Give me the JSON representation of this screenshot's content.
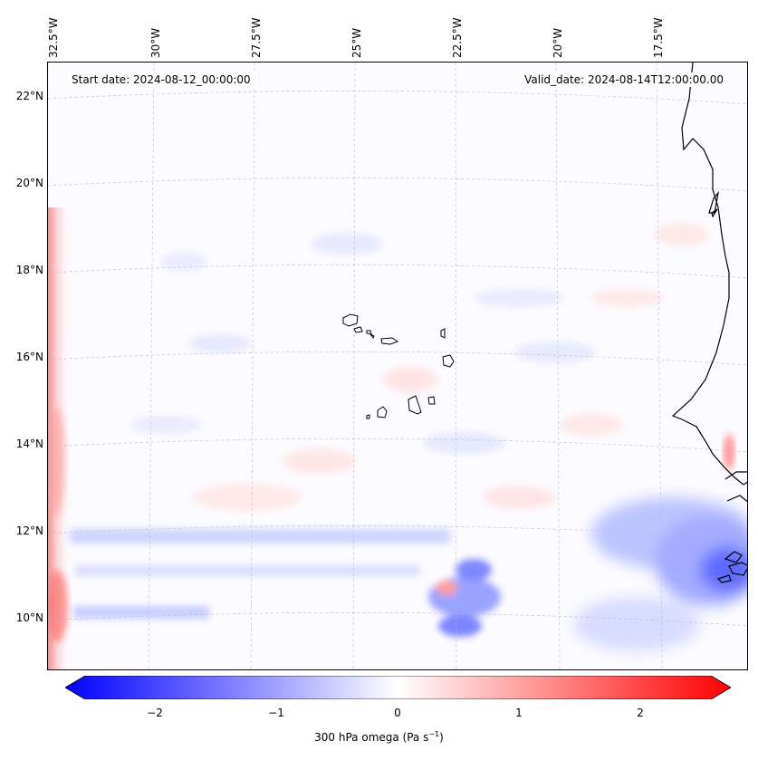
{
  "map": {
    "lon_labels": [
      "32.5°W",
      "30°W",
      "27.5°W",
      "25°W",
      "22.5°W",
      "20°W",
      "17.5°W"
    ],
    "lat_labels": [
      "22°N",
      "20°N",
      "18°N",
      "16°N",
      "14°N",
      "12°N",
      "10°N"
    ],
    "start_date": "Start date: 2024-08-12_00:00:00",
    "valid_date": "Valid_date: 2024-08-14T12:00:00.00",
    "projection": "conic",
    "gridlines": true
  },
  "colorbar": {
    "ticks": [
      "−2",
      "−1",
      "0",
      "1",
      "2"
    ],
    "label_main": "300 hPa omega (Pa s",
    "label_sup": "−1",
    "label_close": ")",
    "colormap": "bwr",
    "range": [
      -2.7,
      2.7
    ],
    "color_low": "#0000ff",
    "color_mid": "#ffffff",
    "color_high": "#ff0000",
    "extend": "both"
  }
}
